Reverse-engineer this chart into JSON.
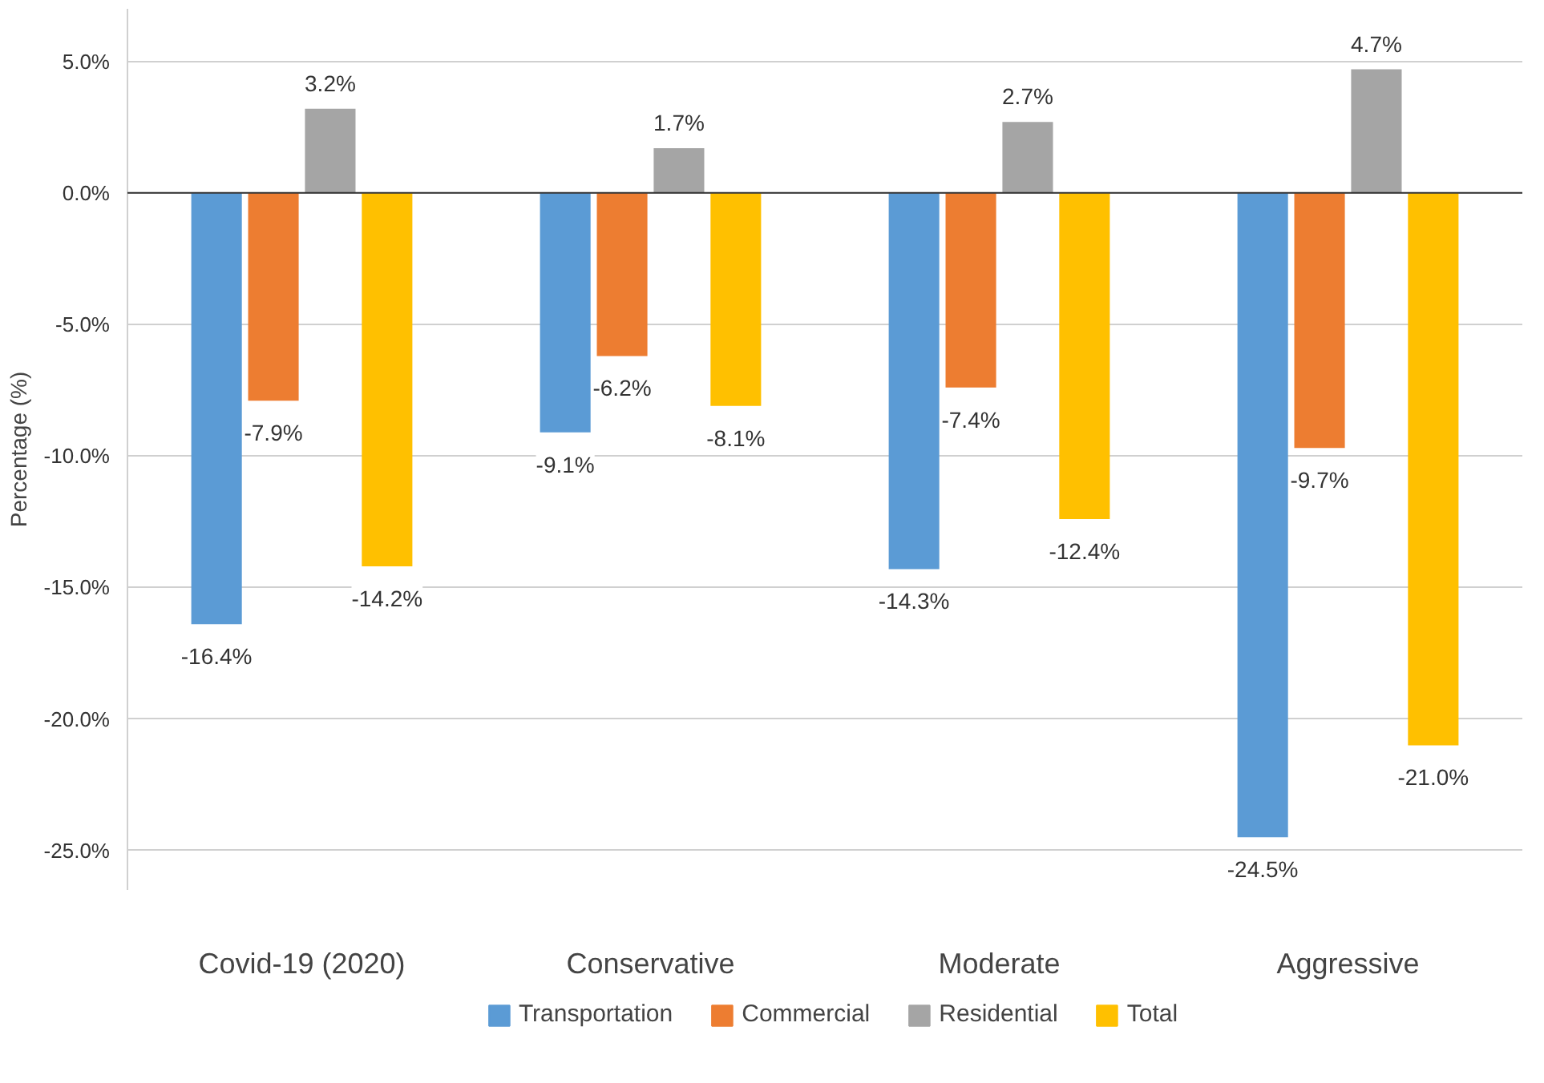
{
  "chart_data": {
    "type": "bar",
    "ylabel": "Percentage (%)",
    "categories": [
      "Covid-19 (2020)",
      "Conservative",
      "Moderate",
      "Aggressive"
    ],
    "series": [
      {
        "name": "Transportation",
        "color": "#5b9bd5",
        "values": [
          -16.4,
          -9.1,
          -14.3,
          -24.5
        ],
        "value_labels": [
          "-16.4%",
          "-9.1%",
          "-14.3%",
          "-24.5%"
        ]
      },
      {
        "name": "Commercial",
        "color": "#ed7d31",
        "values": [
          -7.9,
          -6.2,
          -7.4,
          -9.7
        ],
        "value_labels": [
          "-7.9%",
          "-6.2%",
          "-7.4%",
          "-9.7%"
        ]
      },
      {
        "name": "Residential",
        "color": "#a5a5a5",
        "values": [
          3.2,
          1.7,
          2.7,
          4.7
        ],
        "value_labels": [
          "3.2%",
          "1.7%",
          "2.7%",
          "4.7%"
        ]
      },
      {
        "name": "Total",
        "color": "#ffc000",
        "values": [
          -14.2,
          -8.1,
          -12.4,
          -21.0
        ],
        "value_labels": [
          "-14.2%",
          "-8.1%",
          "-12.4%",
          "-21.0%"
        ]
      }
    ],
    "ylim": [
      -26.5,
      7
    ],
    "yticks": [
      {
        "value": 5,
        "label": "5.0%"
      },
      {
        "value": 0,
        "label": "0.0%"
      },
      {
        "value": -5,
        "label": "-5.0%"
      },
      {
        "value": -10,
        "label": "-10.0%"
      },
      {
        "value": -15,
        "label": "-15.0%"
      },
      {
        "value": -20,
        "label": "-20.0%"
      },
      {
        "value": -25,
        "label": "-25.0%"
      }
    ],
    "grid": "y",
    "legend": "bottom"
  }
}
